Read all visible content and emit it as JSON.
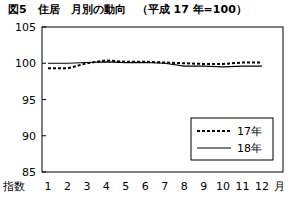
{
  "chart_data": {
    "type": "line",
    "title": "図5　住居　月別の動向　（平成 17 年=100）",
    "xlabel": "月",
    "ylabel": "指数",
    "categories": [
      "1",
      "2",
      "3",
      "4",
      "5",
      "6",
      "7",
      "8",
      "9",
      "10",
      "11",
      "12"
    ],
    "series": [
      {
        "name": "17年",
        "color": "#000000",
        "line_style": "dotted",
        "values": [
          99.3,
          99.3,
          100.0,
          100.4,
          100.2,
          100.2,
          100.1,
          100.0,
          99.9,
          99.9,
          100.1,
          100.1
        ]
      },
      {
        "name": "18年",
        "color": "#000000",
        "line_style": "solid",
        "values": [
          100.0,
          100.0,
          100.1,
          100.2,
          100.1,
          100.1,
          100.0,
          99.6,
          99.6,
          99.5,
          99.6,
          99.6
        ]
      }
    ],
    "ylim": [
      85,
      105
    ],
    "yticks": [
      85,
      90,
      95,
      100,
      105
    ],
    "grid": false,
    "legend": "lower right"
  }
}
